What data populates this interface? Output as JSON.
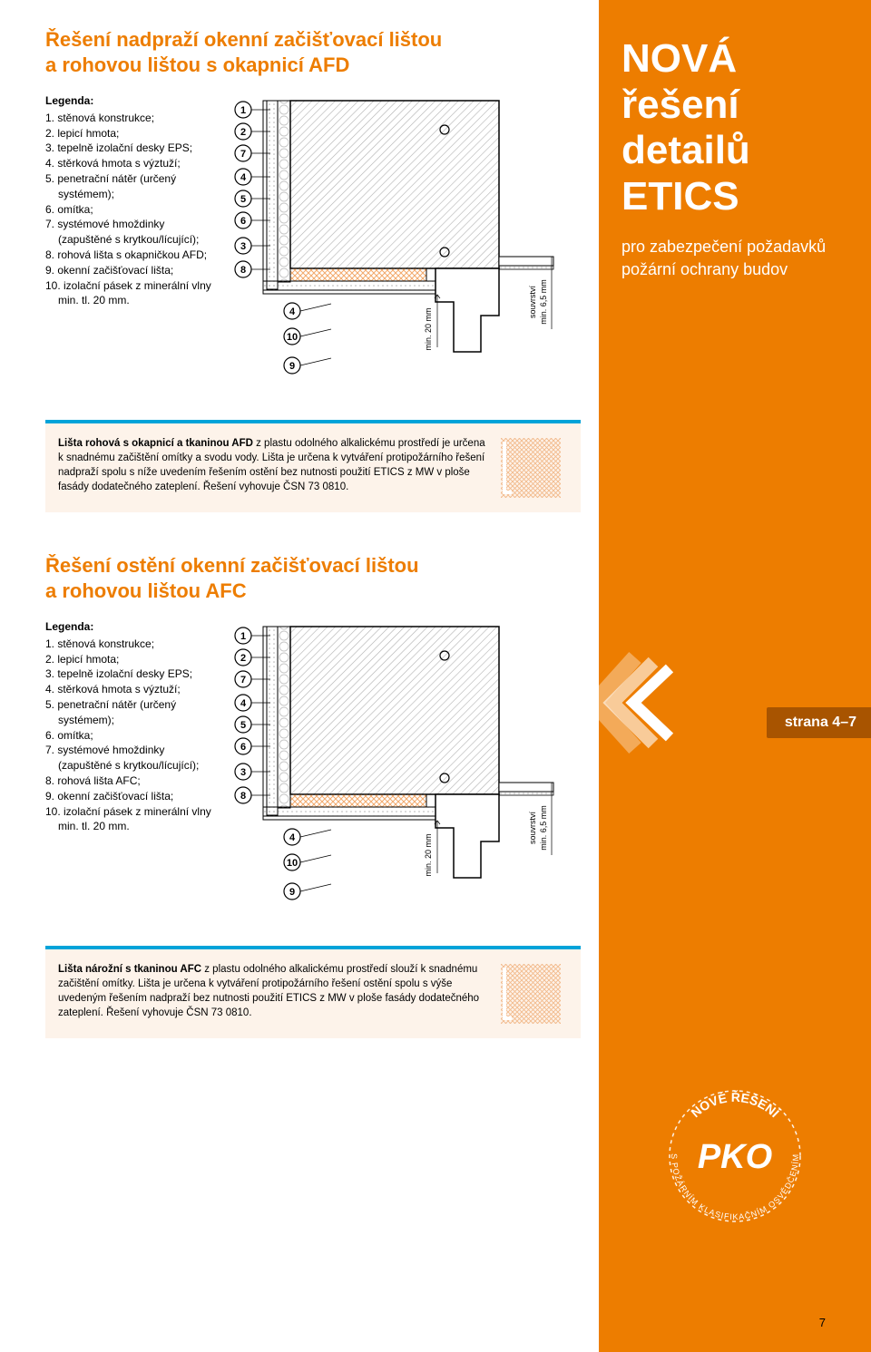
{
  "section1": {
    "title": "Řešení nadpraží okenní začišťovací lištou\na rohovou lištou s okapnicí AFD",
    "legend_title": "Legenda:",
    "legend_items": [
      "1. stěnová konstrukce;",
      "2. lepicí hmota;",
      "3. tepelně izolační desky EPS;",
      "4. stěrková hmota s výztuží;",
      "5. penetrační nátěr (určený systémem);",
      "6. omítka;",
      "7. systémové hmoždinky (zapuštěné s krytkou/lícující);",
      "8. rohová lišta s okapničkou AFD;",
      "9. okenní začišťovací lišta;",
      "10. izolační pásek z minerální vlny min. tl. 20 mm."
    ],
    "callout_lead": "Lišta rohová s okapnicí a tkaninou AFD",
    "callout_rest": " z plastu odolného alkalickému prostředí je určena k snadnému začištění omítky a svodu vody. Lišta je určena k vytváření protipožárního řešení nadpraží spolu s níže uvedením řešením ostění bez nutnosti použití ETICS z MW v ploše fasády dodatečného zateplení. Řešení vyhovuje ČSN 73 0810."
  },
  "section2": {
    "title": "Řešení ostění okenní začišťovací lištou\na rohovou lištou AFC",
    "legend_title": "Legenda:",
    "legend_items": [
      "1. stěnová konstrukce;",
      "2. lepicí hmota;",
      "3. tepelně izolační desky EPS;",
      "4. stěrková hmota s výztuží;",
      "5. penetrační nátěr (určený systémem);",
      "6. omítka;",
      "7. systémové hmoždinky (zapuštěné s krytkou/lícující);",
      "8. rohová lišta AFC;",
      "9. okenní začišťovací lišta;",
      "10. izolační pásek z minerální vlny min. tl. 20 mm."
    ],
    "callout_lead": "Lišta nárožní s tkaninou AFC",
    "callout_rest": " z plastu odolného alkalickému prostředí slouží k snadnému začištění omítky. Lišta je určena k vytváření protipožárního řešení ostění spolu s výše uvedeným řešením nadpraží bez nutnosti použití ETICS z MW v ploše fasády dodatečného zateplení. Řešení vyhovuje ČSN 73 0810."
  },
  "diagram": {
    "markers_left": [
      "1",
      "2",
      "7",
      "4",
      "5",
      "6",
      "3",
      "8"
    ],
    "markers_bottom": [
      "4",
      "10",
      "9"
    ],
    "dim1": "min. 20 mm",
    "dim2_a": "souvrství",
    "dim2_b": "min. 6,5 mm",
    "colors": {
      "wall_hatch": "#b0b0b0",
      "eps_hex": "#c8c8c8",
      "mesh": "#f2a96b",
      "outline": "#000000",
      "fill_light": "#ffffff",
      "mineral": "#d9d0c4",
      "bg": "#ffffff"
    }
  },
  "sidebar": {
    "title_lines": [
      "NOVÁ",
      "řešení",
      "detailů",
      "ETICS"
    ],
    "subtitle": "pro zabezpečení požadavků požární ochrany budov",
    "tab": "strana 4–7",
    "badge_top": "NOVÉ ŘEŠENÍ",
    "badge_center": "PKO",
    "badge_ring": "S POŽÁRNÍM KLASIFIKAČNÍM OSVĚDČENÍM"
  },
  "page_number": "7",
  "swatch_color": "#f2b98a",
  "chevron_colors": [
    "#ffffff",
    "#ffffff",
    "#ffffff"
  ]
}
